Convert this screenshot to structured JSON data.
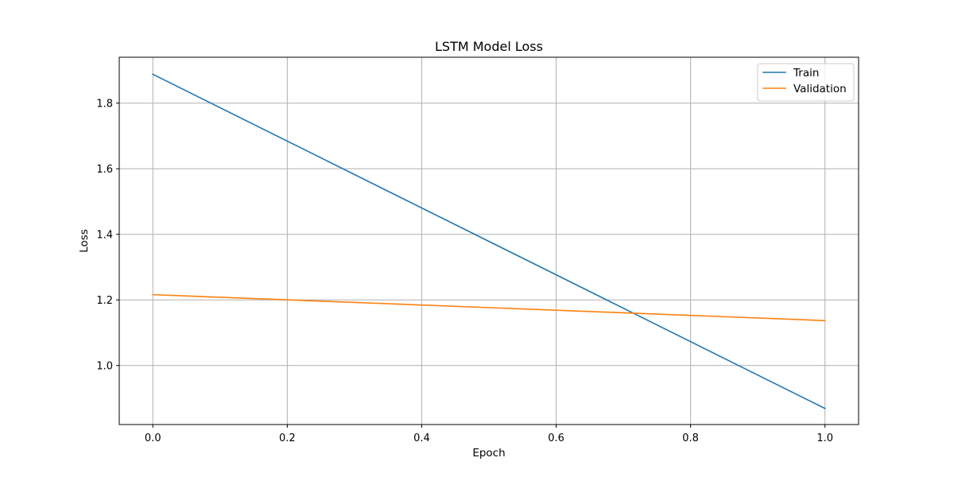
{
  "chart_data": {
    "type": "line",
    "title": "LSTM Model Loss",
    "xlabel": "Epoch",
    "ylabel": "Loss",
    "x": [
      0,
      1
    ],
    "series": [
      {
        "name": "Train",
        "values": [
          1.888,
          0.869
        ],
        "color": "#1f77b4"
      },
      {
        "name": "Validation",
        "values": [
          1.216,
          1.137
        ],
        "color": "#ff7f0e"
      }
    ],
    "xlim": [
      -0.05,
      1.05
    ],
    "ylim": [
      0.82,
      1.94
    ],
    "xticks": [
      0.0,
      0.2,
      0.4,
      0.6,
      0.8,
      1.0
    ],
    "xtick_labels": [
      "0.0",
      "0.2",
      "0.4",
      "0.6",
      "0.8",
      "1.0"
    ],
    "yticks": [
      1.0,
      1.2,
      1.4,
      1.6,
      1.8
    ],
    "ytick_labels": [
      "1.0",
      "1.2",
      "1.4",
      "1.6",
      "1.8"
    ],
    "grid": true,
    "legend_position": "top-right"
  }
}
